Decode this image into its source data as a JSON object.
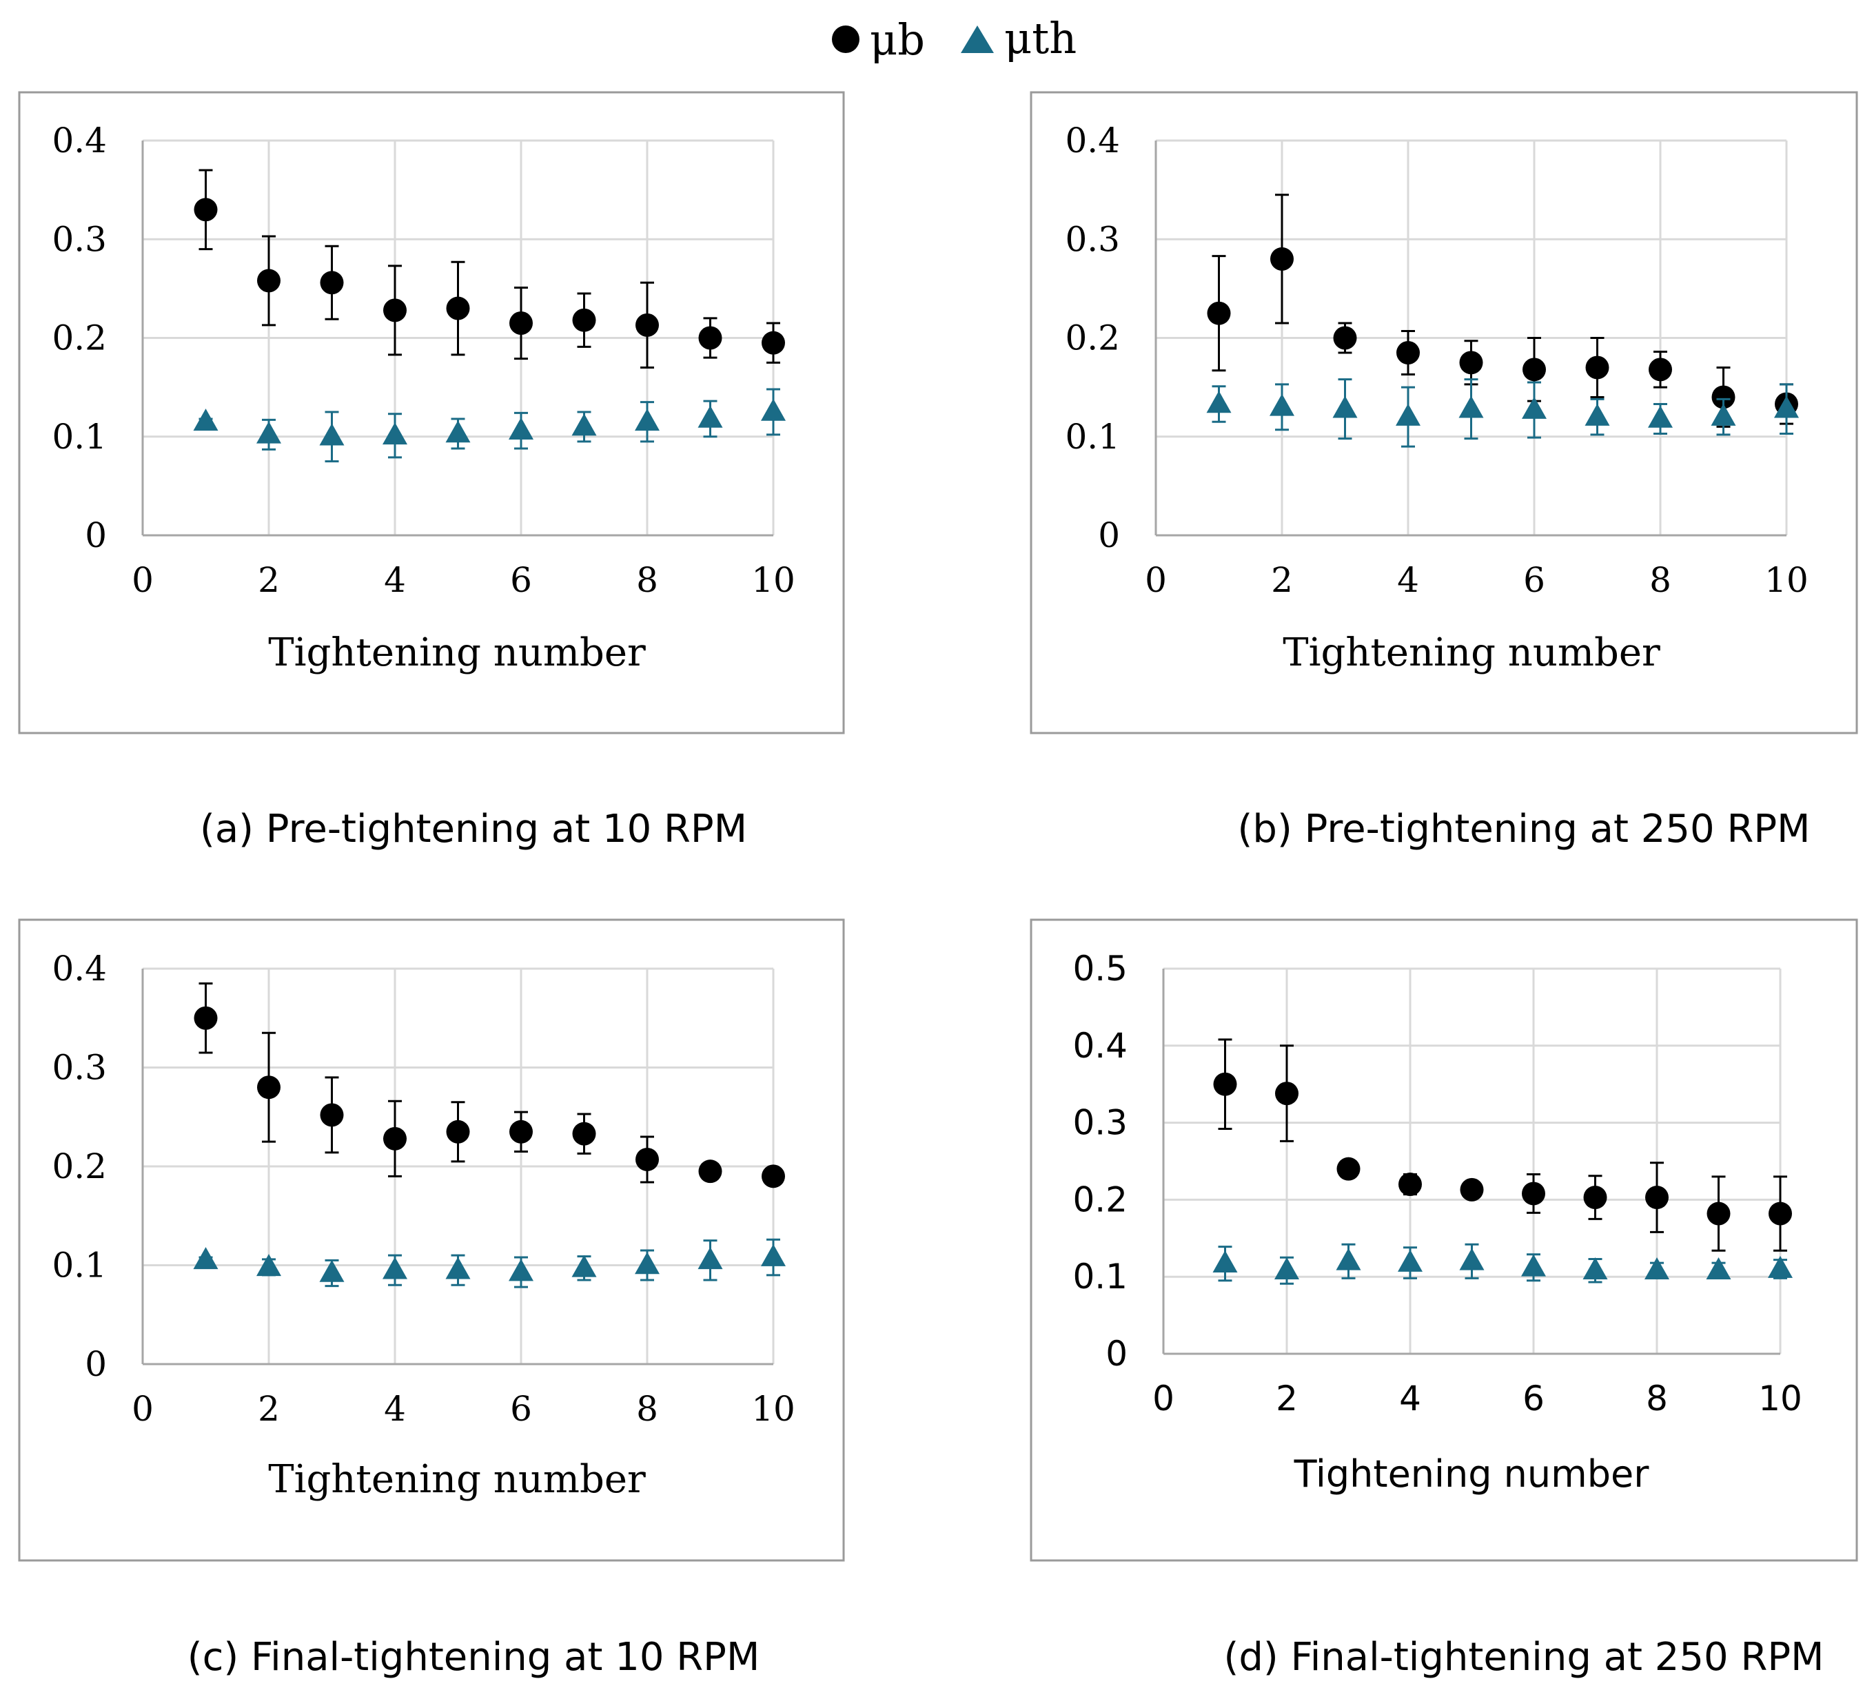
{
  "legend": {
    "mu_b": "μb",
    "mu_th": "μth"
  },
  "colors": {
    "mu_b": "#000000",
    "mu_th": "#1a6b86",
    "grid": "#d9d9d9",
    "axis": "#a6a6a6",
    "frame": "#9a9a9a"
  },
  "chart_data": [
    {
      "id": "a",
      "type": "scatter",
      "caption": "(a)  Pre-tightening at 10 RPM",
      "xlabel": "Tightening number",
      "ylabel": "",
      "xlim": [
        0,
        10
      ],
      "ylim": [
        0,
        0.4
      ],
      "xticks": [
        "0",
        "2",
        "4",
        "6",
        "8",
        "10"
      ],
      "yticks": [
        "0",
        "0.1",
        "0.2",
        "0.3",
        "0.4"
      ],
      "grid": true,
      "x": [
        1,
        2,
        3,
        4,
        5,
        6,
        7,
        8,
        9,
        10
      ],
      "series": [
        {
          "name": "μb",
          "marker": "circle",
          "values": [
            0.33,
            0.258,
            0.256,
            0.228,
            0.23,
            0.215,
            0.218,
            0.213,
            0.2,
            0.195
          ],
          "error": [
            0.04,
            0.045,
            0.037,
            0.045,
            0.047,
            0.036,
            0.027,
            0.043,
            0.02,
            0.02
          ]
        },
        {
          "name": "μth",
          "marker": "triangle",
          "values": [
            0.115,
            0.102,
            0.1,
            0.101,
            0.103,
            0.106,
            0.11,
            0.115,
            0.118,
            0.125
          ],
          "error": [
            0.003,
            0.015,
            0.025,
            0.022,
            0.015,
            0.018,
            0.015,
            0.02,
            0.018,
            0.023
          ]
        }
      ]
    },
    {
      "id": "b",
      "type": "scatter",
      "caption": "(b)  Pre-tightening at 250 RPM",
      "xlabel": "Tightening number",
      "ylabel": "",
      "xlim": [
        0,
        10
      ],
      "ylim": [
        0,
        0.4
      ],
      "xticks": [
        "0",
        "2",
        "4",
        "6",
        "8",
        "10"
      ],
      "yticks": [
        "0",
        "0.1",
        "0.2",
        "0.3",
        "0.4"
      ],
      "grid": true,
      "x": [
        1,
        2,
        3,
        4,
        5,
        6,
        7,
        8,
        9,
        10
      ],
      "series": [
        {
          "name": "μb",
          "marker": "circle",
          "values": [
            0.225,
            0.28,
            0.2,
            0.185,
            0.175,
            0.168,
            0.17,
            0.168,
            0.14,
            0.133
          ],
          "error": [
            0.058,
            0.065,
            0.015,
            0.022,
            0.022,
            0.032,
            0.03,
            0.018,
            0.03,
            0.02
          ]
        },
        {
          "name": "μth",
          "marker": "triangle",
          "values": [
            0.133,
            0.13,
            0.128,
            0.12,
            0.128,
            0.127,
            0.12,
            0.118,
            0.12,
            0.128
          ],
          "error": [
            0.018,
            0.023,
            0.03,
            0.03,
            0.03,
            0.028,
            0.018,
            0.015,
            0.018,
            0.025
          ]
        }
      ]
    },
    {
      "id": "c",
      "type": "scatter",
      "caption": "(c)  Final-tightening at 10 RPM",
      "xlabel": "Tightening number",
      "ylabel": "",
      "xlim": [
        0,
        10
      ],
      "ylim": [
        0,
        0.4
      ],
      "xticks": [
        "0",
        "2",
        "4",
        "6",
        "8",
        "10"
      ],
      "yticks": [
        "0",
        "0.1",
        "0.2",
        "0.3",
        "0.4"
      ],
      "grid": true,
      "x": [
        1,
        2,
        3,
        4,
        5,
        6,
        7,
        8,
        9,
        10
      ],
      "series": [
        {
          "name": "μb",
          "marker": "circle",
          "values": [
            0.35,
            0.28,
            0.252,
            0.228,
            0.235,
            0.235,
            0.233,
            0.207,
            0.195,
            0.19
          ],
          "error": [
            0.035,
            0.055,
            0.038,
            0.038,
            0.03,
            0.02,
            0.02,
            0.023,
            0.005,
            0.005
          ]
        },
        {
          "name": "μth",
          "marker": "triangle",
          "values": [
            0.105,
            0.098,
            0.092,
            0.095,
            0.095,
            0.093,
            0.097,
            0.1,
            0.105,
            0.108
          ],
          "error": [
            0.003,
            0.008,
            0.013,
            0.015,
            0.015,
            0.015,
            0.012,
            0.015,
            0.02,
            0.018
          ]
        }
      ]
    },
    {
      "id": "d",
      "type": "scatter",
      "caption": "(d)  Final-tightening at 250 RPM",
      "xlabel": "Tightening number",
      "ylabel": "",
      "xlim": [
        0,
        10
      ],
      "ylim": [
        0,
        0.5
      ],
      "xticks": [
        "0",
        "2",
        "4",
        "6",
        "8",
        "10"
      ],
      "yticks": [
        "0",
        "0.1",
        "0.2",
        "0.3",
        "0.4",
        "0.5"
      ],
      "grid": true,
      "x": [
        1,
        2,
        3,
        4,
        5,
        6,
        7,
        8,
        9,
        10
      ],
      "series": [
        {
          "name": "μb",
          "marker": "circle",
          "values": [
            0.35,
            0.338,
            0.24,
            0.22,
            0.213,
            0.208,
            0.203,
            0.203,
            0.182,
            0.182
          ],
          "error": [
            0.058,
            0.062,
            0.01,
            0.013,
            0.01,
            0.025,
            0.028,
            0.045,
            0.048,
            0.048
          ]
        },
        {
          "name": "μth",
          "marker": "triangle",
          "values": [
            0.117,
            0.108,
            0.12,
            0.118,
            0.12,
            0.112,
            0.108,
            0.108,
            0.108,
            0.11
          ],
          "error": [
            0.022,
            0.017,
            0.022,
            0.02,
            0.022,
            0.017,
            0.015,
            0.01,
            0.01,
            0.012
          ]
        }
      ]
    }
  ]
}
